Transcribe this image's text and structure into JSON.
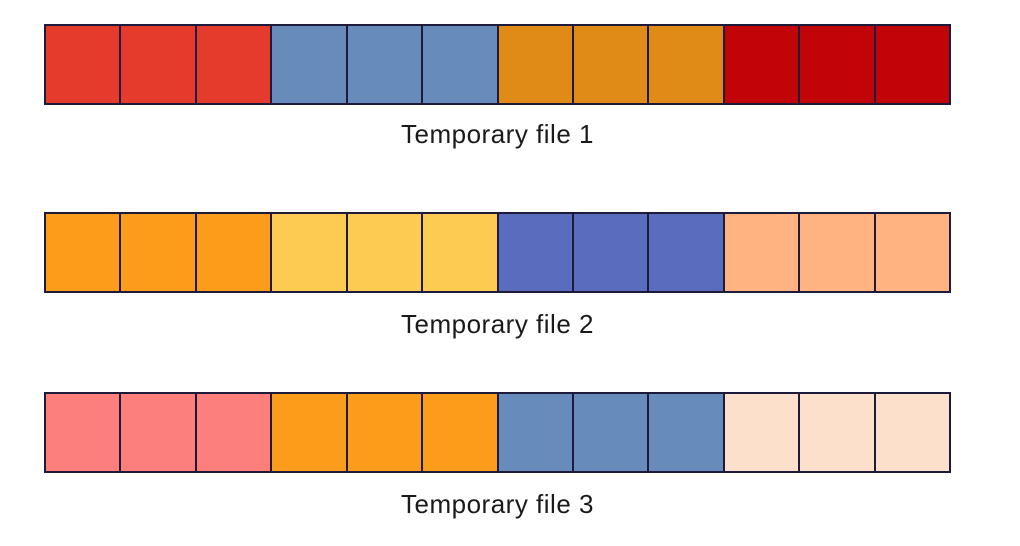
{
  "files": [
    {
      "label": "Temporary file 1",
      "cells": [
        "#e43b2c",
        "#e43b2c",
        "#e43b2c",
        "#678cbc",
        "#678cbc",
        "#678cbc",
        "#e08a17",
        "#e08a17",
        "#e08a17",
        "#c10407",
        "#c10407",
        "#c10407"
      ]
    },
    {
      "label": "Temporary file 2",
      "cells": [
        "#fb9c1b",
        "#fb9c1b",
        "#fb9c1b",
        "#fdca52",
        "#fdca52",
        "#fdca52",
        "#596cbd",
        "#596cbd",
        "#596cbd",
        "#feb381",
        "#feb381",
        "#feb381"
      ]
    },
    {
      "label": "Temporary file 3",
      "cells": [
        "#fd7f7b",
        "#fd7f7b",
        "#fd7f7b",
        "#fb9c1b",
        "#fb9c1b",
        "#fb9c1b",
        "#678cbc",
        "#678cbc",
        "#678cbc",
        "#fde0cc",
        "#fde0cc",
        "#fde0cc"
      ]
    }
  ]
}
